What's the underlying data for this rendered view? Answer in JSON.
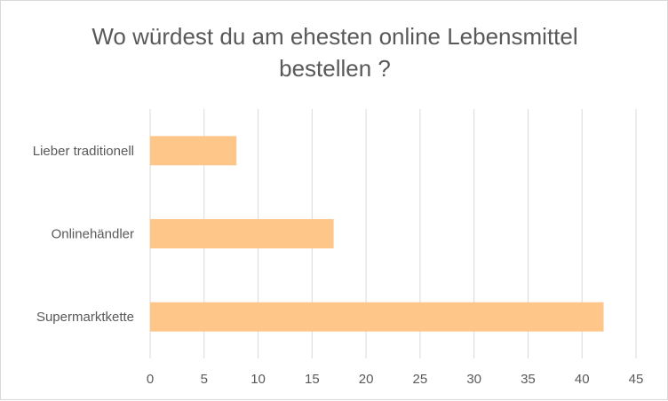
{
  "chart_data": {
    "type": "bar",
    "orientation": "horizontal",
    "title": "Wo würdest du am ehesten online Lebensmittel bestellen ?",
    "categories": [
      "Lieber traditionell",
      "Onlinehändler",
      "Supermarktkette"
    ],
    "values": [
      8,
      17,
      42
    ],
    "xlim": [
      0,
      45
    ],
    "xticks": [
      "0",
      "5",
      "10",
      "15",
      "20",
      "25",
      "30",
      "35",
      "40",
      "45"
    ],
    "grid": "vertical",
    "bar_color": "#ffc68a"
  }
}
